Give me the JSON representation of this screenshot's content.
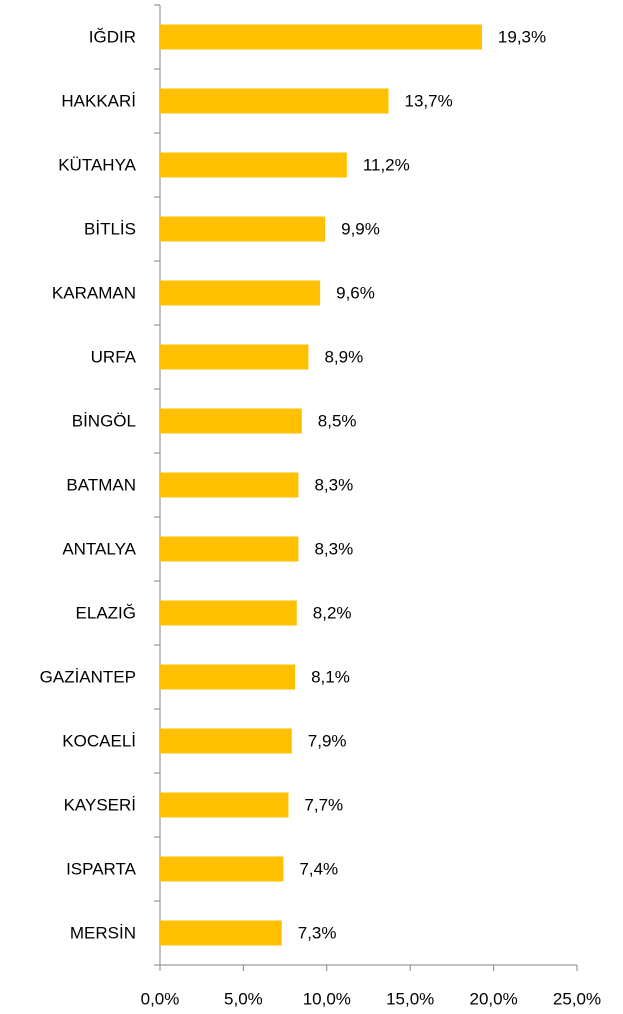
{
  "chart_data": {
    "type": "bar",
    "orientation": "horizontal",
    "categories": [
      "IĞDIR",
      "HAKKARİ",
      "KÜTAHYA",
      "BİTLİS",
      "KARAMAN",
      "URFA",
      "BİNGÖL",
      "BATMAN",
      "ANTALYA",
      "ELAZIĞ",
      "GAZİANTEP",
      "KOCAELİ",
      "KAYSERİ",
      "ISPARTA",
      "MERSİN"
    ],
    "values": [
      19.3,
      13.7,
      11.2,
      9.9,
      9.6,
      8.9,
      8.5,
      8.3,
      8.3,
      8.2,
      8.1,
      7.9,
      7.7,
      7.4,
      7.3
    ],
    "value_labels": [
      "19,3%",
      "13,7%",
      "11,2%",
      "9,9%",
      "9,6%",
      "8,9%",
      "8,5%",
      "8,3%",
      "8,3%",
      "8,2%",
      "8,1%",
      "7,9%",
      "7,7%",
      "7,4%",
      "7,3%"
    ],
    "color": "#ffc000",
    "xlim": [
      0,
      25
    ],
    "xticks": [
      {
        "value": 0,
        "label": "0,0%"
      },
      {
        "value": 5,
        "label": "5,0%"
      },
      {
        "value": 10,
        "label": "10,0%"
      },
      {
        "value": 15,
        "label": "15,0%"
      },
      {
        "value": 20,
        "label": "20,0%"
      },
      {
        "value": 25,
        "label": "25,0%"
      }
    ],
    "grid": false
  }
}
